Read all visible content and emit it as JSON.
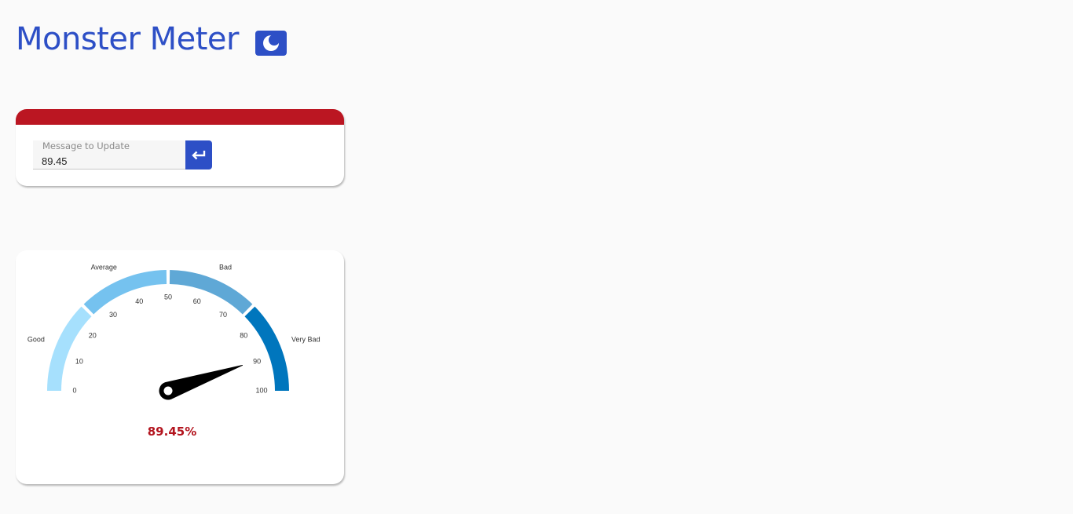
{
  "app": {
    "title": "Monster Meter",
    "accent_color": "#2d4fc6",
    "theme_toggle_icon": "moon-icon"
  },
  "message_form": {
    "band_color": "#bb1622",
    "label": "Message to Update",
    "value": "89.45",
    "submit_icon": "enter-arrow-icon"
  },
  "gauge": {
    "value": 89.45,
    "value_text": "89.45%",
    "value_color": "#b3141e",
    "min": 0,
    "max": 100,
    "ticks": [
      "0",
      "10",
      "20",
      "30",
      "40",
      "50",
      "60",
      "70",
      "80",
      "90",
      "100"
    ],
    "bands": [
      {
        "label": "Good",
        "from": 0,
        "to": 25,
        "color": "#a6e0fd"
      },
      {
        "label": "Average",
        "from": 25,
        "to": 50,
        "color": "#75c2ef"
      },
      {
        "label": "Bad",
        "from": 50,
        "to": 75,
        "color": "#5fa8d6"
      },
      {
        "label": "Very Bad",
        "from": 75,
        "to": 100,
        "color": "#0076bd"
      }
    ],
    "needle_color": "#000000"
  }
}
